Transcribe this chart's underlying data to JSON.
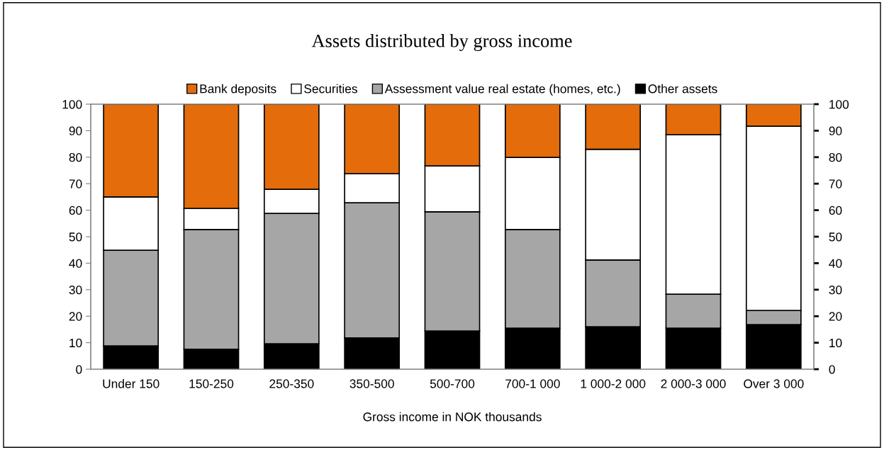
{
  "chart_data": {
    "type": "bar",
    "title": "Assets distributed by gross income",
    "xlabel": "Gross income in NOK thousands",
    "categories": [
      "Under 150",
      "150-250",
      "250-350",
      "350-500",
      "500-700",
      "700-1 000",
      "1 000-2 000",
      "2 000-3 000",
      "Over 3 000"
    ],
    "stacked": true,
    "series": [
      {
        "name": "Other assets",
        "color": "#000000",
        "values": [
          8.8,
          7.5,
          9.6,
          11.8,
          14.4,
          15.5,
          16.0,
          15.5,
          16.8
        ]
      },
      {
        "name": "Assessment value real estate (homes, etc.)",
        "color": "#a6a6a6",
        "values": [
          36.1,
          45.2,
          49.2,
          51.0,
          45.0,
          37.2,
          25.2,
          12.8,
          5.4
        ]
      },
      {
        "name": "Securities",
        "color": "#ffffff",
        "values": [
          20.1,
          8.0,
          9.1,
          11.0,
          17.3,
          27.2,
          41.8,
          60.2,
          69.5
        ]
      },
      {
        "name": "Bank deposits",
        "color": "#e46c0a",
        "values": [
          35.0,
          39.3,
          32.1,
          26.2,
          23.3,
          20.1,
          17.0,
          11.5,
          8.3
        ]
      }
    ],
    "ylim": [
      0,
      100
    ],
    "yticks": [
      0,
      10,
      20,
      30,
      40,
      50,
      60,
      70,
      80,
      90,
      100
    ],
    "y2lim": [
      0,
      100
    ],
    "y2ticks": [
      0,
      10,
      20,
      30,
      40,
      50,
      60,
      70,
      80,
      90,
      100
    ],
    "legend": "top",
    "grid": false
  }
}
